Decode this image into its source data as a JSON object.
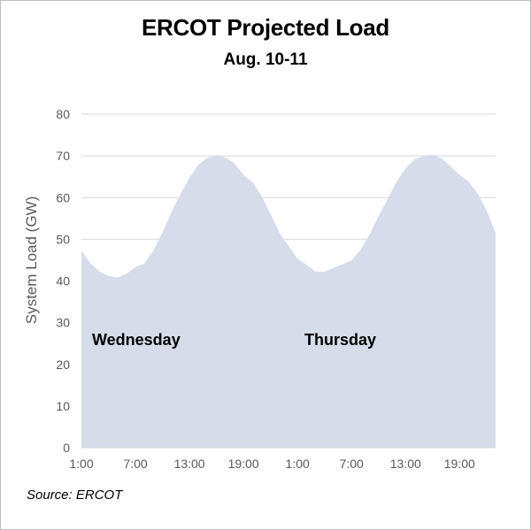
{
  "chart_data": {
    "type": "area",
    "title": "ERCOT Projected Load",
    "subtitle": "Aug. 10-11",
    "ylabel": "System Load (GW)",
    "xlabel": "",
    "ylim": [
      0,
      80
    ],
    "yticks": [
      0,
      10,
      20,
      30,
      40,
      50,
      60,
      70,
      80
    ],
    "xtick_labels": [
      "1:00",
      "7:00",
      "13:00",
      "19:00",
      "1:00",
      "7:00",
      "13:00",
      "19:00"
    ],
    "grid": true,
    "legend": "none",
    "annotations": [
      "Wednesday",
      "Thursday"
    ],
    "source": "Source: ERCOT",
    "fill_color": "#d6dcea",
    "series": [
      {
        "values": [
          47.3,
          44.2,
          42.3,
          41.2,
          40.8,
          41.7,
          43.3,
          44.2,
          47.3,
          51.6,
          56.5,
          60.8,
          64.8,
          67.9,
          69.6,
          70.0,
          69.6,
          68.2,
          65.4,
          63.7,
          60.4,
          56.1,
          51.5,
          48.4,
          45.3,
          43.9,
          42.2,
          42.2,
          43.1,
          44.0,
          45.0,
          47.4,
          51.1,
          55.5,
          59.6,
          63.8,
          67.0,
          69.2,
          70.0,
          70.2,
          69.4,
          67.5,
          65.4,
          63.8,
          61.0,
          56.9,
          51.5
        ]
      }
    ]
  }
}
